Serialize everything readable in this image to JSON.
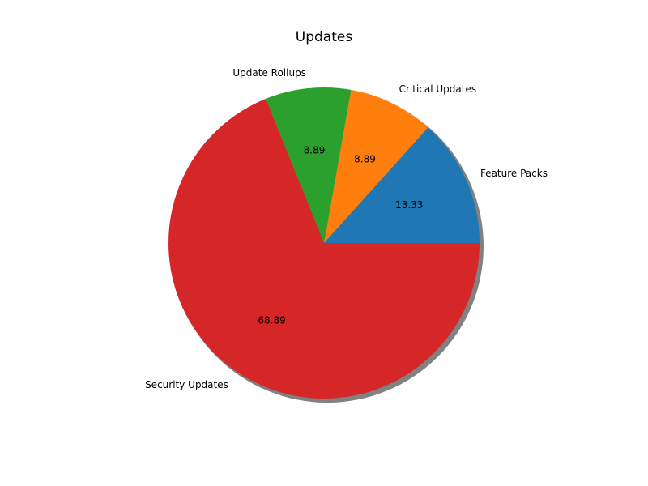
{
  "chart_data": {
    "type": "pie",
    "title": "Updates",
    "categories": [
      "Feature Packs",
      "Critical Updates",
      "Update Rollups",
      "Security Updates"
    ],
    "values": [
      13.33,
      8.89,
      8.89,
      68.89
    ],
    "value_labels": [
      "13.33",
      "8.89",
      "8.89",
      "68.89"
    ],
    "colors": [
      "#1f77b4",
      "#ff7f0e",
      "#2ca02c",
      "#d62728"
    ],
    "shadow": true,
    "legend": "none"
  }
}
